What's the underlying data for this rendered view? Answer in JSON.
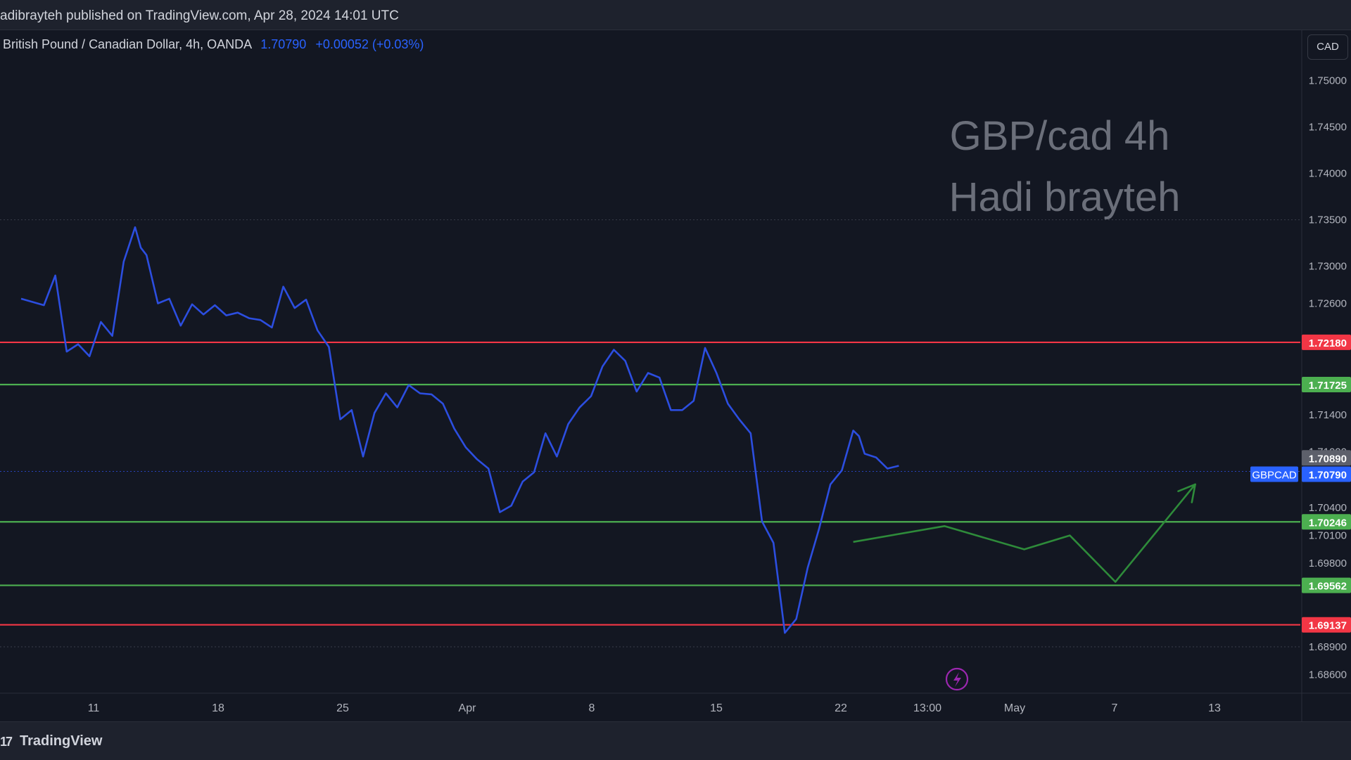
{
  "header": {
    "published_text": "adibrayteh published on TradingView.com, Apr 28, 2024 14:01 UTC"
  },
  "legend": {
    "symbol_text": "British Pound / Canadian Dollar, 4h, OANDA",
    "last_price": "1.70790",
    "change": "+0.00052 (+0.03%)"
  },
  "currency_button": "CAD",
  "footer": {
    "brand": "TradingView"
  },
  "colors": {
    "background": "#131722",
    "price_line": "#2c4ee0",
    "resistance": "#f23645",
    "support": "#4caf50",
    "projection": "#2e8b3a",
    "axis_text": "#b2b5be"
  },
  "chart_data": {
    "type": "line",
    "title": "GBP/cad 4h",
    "subtitle": "Hadi brayteh",
    "symbol": "GBPCAD",
    "ylim": [
      1.684,
      1.7555
    ],
    "y_ticks": [
      1.686,
      1.689,
      1.698,
      1.701,
      1.704,
      1.71,
      1.714,
      1.726,
      1.73,
      1.735,
      1.74,
      1.745,
      1.75
    ],
    "x_ticks": [
      "11",
      "18",
      "25",
      "Apr",
      "8",
      "15",
      "22",
      "13:00",
      "May",
      "7",
      "13"
    ],
    "grid": false,
    "horizontal_levels": [
      {
        "value": 1.7218,
        "label": "1.72180",
        "kind": "resistance"
      },
      {
        "value": 1.71725,
        "label": "1.71725",
        "kind": "support"
      },
      {
        "value": 1.70246,
        "label": "1.70246",
        "kind": "support"
      },
      {
        "value": 1.69562,
        "label": "1.69562",
        "kind": "support"
      },
      {
        "value": 1.69137,
        "label": "1.69137",
        "kind": "resistance"
      }
    ],
    "price_labels": [
      {
        "value": 1.7089,
        "label": "1.70890"
      },
      {
        "value": 1.7079,
        "label": "1.70790",
        "tag": "GBPCAD"
      }
    ],
    "series": [
      {
        "name": "GBPCAD",
        "x": [
          0,
          2,
          3,
          4,
          5,
          6,
          7,
          8,
          9,
          10,
          10.5,
          11,
          12,
          13,
          14,
          15,
          16,
          17,
          18,
          19,
          20,
          21,
          22,
          23,
          24,
          25,
          26,
          27,
          28,
          29,
          30,
          31,
          32,
          33,
          34,
          35,
          36,
          37,
          38,
          39,
          40,
          41,
          42,
          43,
          44,
          45,
          46,
          47,
          48,
          49,
          50,
          51,
          52,
          53,
          54,
          55,
          56,
          57,
          58,
          59,
          60,
          61,
          62,
          63,
          64,
          65,
          66,
          67,
          68,
          69,
          70,
          71,
          72,
          73,
          73.5,
          74,
          75,
          76,
          77
        ],
        "y": [
          1.7265,
          1.7258,
          1.729,
          1.7208,
          1.7216,
          1.7203,
          1.724,
          1.7225,
          1.7305,
          1.7342,
          1.732,
          1.7312,
          1.726,
          1.7265,
          1.7236,
          1.7259,
          1.7248,
          1.7258,
          1.7247,
          1.725,
          1.7244,
          1.7242,
          1.7234,
          1.7278,
          1.7255,
          1.7264,
          1.7231,
          1.7213,
          1.7135,
          1.7145,
          1.7095,
          1.7142,
          1.7163,
          1.7148,
          1.7172,
          1.7163,
          1.7162,
          1.7152,
          1.7125,
          1.7105,
          1.7092,
          1.7082,
          1.7035,
          1.7042,
          1.7068,
          1.7078,
          1.712,
          1.7095,
          1.713,
          1.7148,
          1.716,
          1.7192,
          1.721,
          1.7198,
          1.7165,
          1.7185,
          1.718,
          1.7145,
          1.7145,
          1.7155,
          1.7212,
          1.7185,
          1.7152,
          1.7135,
          1.712,
          1.7025,
          1.7002,
          1.6905,
          1.692,
          1.6975,
          1.7017,
          1.7065,
          1.708,
          1.7123,
          1.7117,
          1.7098,
          1.7094,
          1.7082,
          1.7085
        ]
      }
    ],
    "projection": {
      "x": [
        73,
        81,
        88,
        92,
        96,
        103
      ],
      "y": [
        1.7003,
        1.702,
        1.6995,
        1.701,
        1.696,
        1.7065
      ]
    },
    "annotation_icon": "lightning-icon"
  }
}
